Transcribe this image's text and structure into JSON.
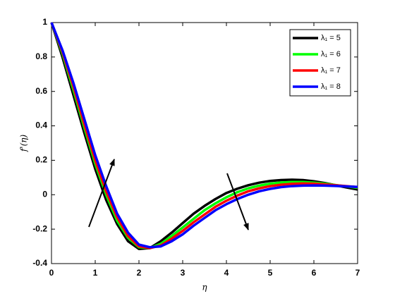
{
  "chart_data": {
    "type": "line",
    "xlabel": "η",
    "ylabel": "f'(η)",
    "x": [
      0,
      0.25,
      0.5,
      0.75,
      1,
      1.25,
      1.5,
      1.75,
      2,
      2.25,
      2.5,
      2.75,
      3,
      3.25,
      3.5,
      3.75,
      4,
      4.25,
      4.5,
      4.75,
      5,
      5.25,
      5.5,
      5.75,
      6,
      6.25,
      6.5,
      6.75,
      7
    ],
    "series": [
      {
        "name": "λ₁ = 5",
        "color": "#000000",
        "values": [
          1,
          0.8,
          0.58,
          0.36,
          0.15,
          -0.03,
          -0.17,
          -0.27,
          -0.315,
          -0.31,
          -0.27,
          -0.22,
          -0.165,
          -0.11,
          -0.065,
          -0.025,
          0.01,
          0.035,
          0.055,
          0.07,
          0.08,
          0.085,
          0.087,
          0.085,
          0.078,
          0.068,
          0.055,
          0.042,
          0.03
        ]
      },
      {
        "name": "λ₁ = 6",
        "color": "#00ff00",
        "values": [
          1,
          0.82,
          0.61,
          0.39,
          0.18,
          0.0,
          -0.15,
          -0.25,
          -0.305,
          -0.31,
          -0.285,
          -0.24,
          -0.19,
          -0.14,
          -0.09,
          -0.05,
          -0.015,
          0.015,
          0.037,
          0.053,
          0.064,
          0.071,
          0.074,
          0.074,
          0.07,
          0.064,
          0.056,
          0.048,
          0.04
        ]
      },
      {
        "name": "λ₁ = 7",
        "color": "#ff0000",
        "values": [
          1,
          0.83,
          0.63,
          0.41,
          0.2,
          0.02,
          -0.13,
          -0.24,
          -0.3,
          -0.31,
          -0.295,
          -0.255,
          -0.21,
          -0.16,
          -0.115,
          -0.07,
          -0.035,
          -0.005,
          0.02,
          0.037,
          0.05,
          0.058,
          0.063,
          0.065,
          0.064,
          0.06,
          0.055,
          0.05,
          0.044
        ]
      },
      {
        "name": "λ₁ = 8",
        "color": "#0000ff",
        "values": [
          1,
          0.84,
          0.65,
          0.44,
          0.23,
          0.05,
          -0.11,
          -0.22,
          -0.29,
          -0.305,
          -0.3,
          -0.27,
          -0.23,
          -0.18,
          -0.135,
          -0.09,
          -0.055,
          -0.025,
          0.0,
          0.02,
          0.034,
          0.044,
          0.05,
          0.053,
          0.054,
          0.053,
          0.051,
          0.048,
          0.045
        ]
      }
    ],
    "xlim": [
      0,
      7
    ],
    "xticks": [
      0,
      1,
      2,
      3,
      4,
      5,
      6,
      7
    ],
    "ylim": [
      -0.4,
      1
    ],
    "yticks": [
      -0.4,
      -0.2,
      0,
      0.2,
      0.4,
      0.6,
      0.8,
      1
    ],
    "grid": false,
    "legend": "northeast"
  }
}
